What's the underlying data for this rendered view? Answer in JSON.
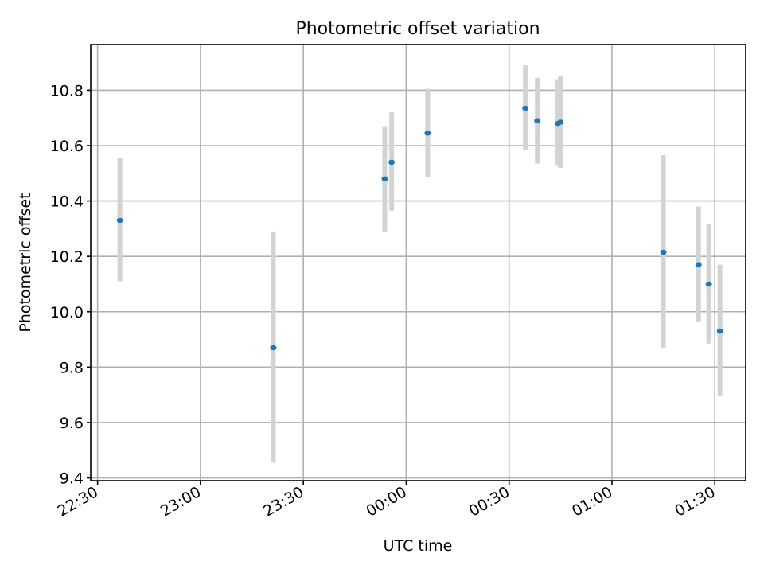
{
  "chart_data": {
    "type": "scatter",
    "title": "Photometric offset variation",
    "xlabel": "UTC time",
    "ylabel": "Photometric offset",
    "grid": true,
    "x_axis_type": "time",
    "xlim": [
      "22:28",
      "01:39"
    ],
    "ylim": [
      9.39,
      10.965
    ],
    "xticks": [
      "22:30",
      "23:00",
      "23:30",
      "00:00",
      "00:30",
      "01:00",
      "01:30"
    ],
    "yticks": [
      "9.4",
      "9.6",
      "9.8",
      "10.0",
      "10.2",
      "10.4",
      "10.6",
      "10.8"
    ],
    "colors": {
      "point": "#1f77b4",
      "errorbar": "#d3d3d3"
    },
    "series": [
      {
        "points": [
          {
            "x": "22:36:30",
            "y": 10.33,
            "ylow": 10.11,
            "yhigh": 10.555
          },
          {
            "x": "23:21:15",
            "y": 9.87,
            "ylow": 9.455,
            "yhigh": 10.29
          },
          {
            "x": "23:53:45",
            "y": 10.48,
            "ylow": 10.29,
            "yhigh": 10.67
          },
          {
            "x": "23:55:45",
            "y": 10.54,
            "ylow": 10.365,
            "yhigh": 10.72
          },
          {
            "x": "00:06:15",
            "y": 10.645,
            "ylow": 10.485,
            "yhigh": 10.805
          },
          {
            "x": "00:34:45",
            "y": 10.735,
            "ylow": 10.585,
            "yhigh": 10.89
          },
          {
            "x": "00:38:15",
            "y": 10.69,
            "ylow": 10.535,
            "yhigh": 10.845
          },
          {
            "x": "00:44:15",
            "y": 10.68,
            "ylow": 10.53,
            "yhigh": 10.84
          },
          {
            "x": "00:45:00",
            "y": 10.685,
            "ylow": 10.52,
            "yhigh": 10.85
          },
          {
            "x": "01:15:00",
            "y": 10.215,
            "ylow": 9.87,
            "yhigh": 10.565
          },
          {
            "x": "01:25:15",
            "y": 10.17,
            "ylow": 9.965,
            "yhigh": 10.38
          },
          {
            "x": "01:28:15",
            "y": 10.1,
            "ylow": 9.885,
            "yhigh": 10.315
          },
          {
            "x": "01:31:30",
            "y": 9.93,
            "ylow": 9.695,
            "yhigh": 10.17
          }
        ]
      }
    ]
  }
}
